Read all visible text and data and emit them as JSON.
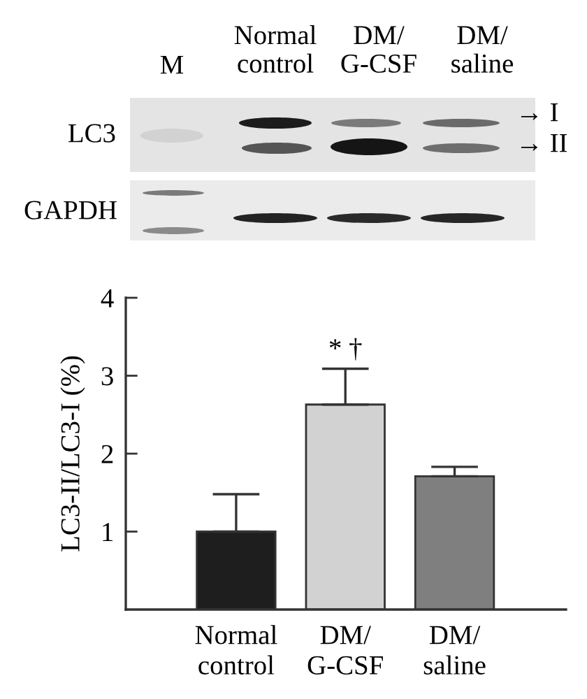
{
  "chart_data": {
    "type": "bar",
    "ylabel": "LC3-II/LC3-I (%)",
    "categories": [
      "Normal\ncontrol",
      "DM/\nG-CSF",
      "DM/\nsaline"
    ],
    "values": [
      1.0,
      2.63,
      1.71
    ],
    "colors": [
      "#1e1e1e",
      "#d2d2d2",
      "#7f7f7f"
    ],
    "errors": [
      [
        1.0,
        1.48
      ],
      [
        2.63,
        3.09
      ],
      [
        1.71,
        1.83
      ]
    ],
    "ylim": [
      0,
      4
    ],
    "yticks": [
      1,
      2,
      3,
      4
    ],
    "annotations": [
      {
        "text": "* †",
        "x": "DM/\nG-CSF",
        "y": 3.09
      },
      "M",
      "Normal\ncontrol",
      "DM/\nG-CSF",
      "DM/\nsaline",
      "LC3",
      "GAPDH",
      "→ I",
      "→ II"
    ]
  }
}
